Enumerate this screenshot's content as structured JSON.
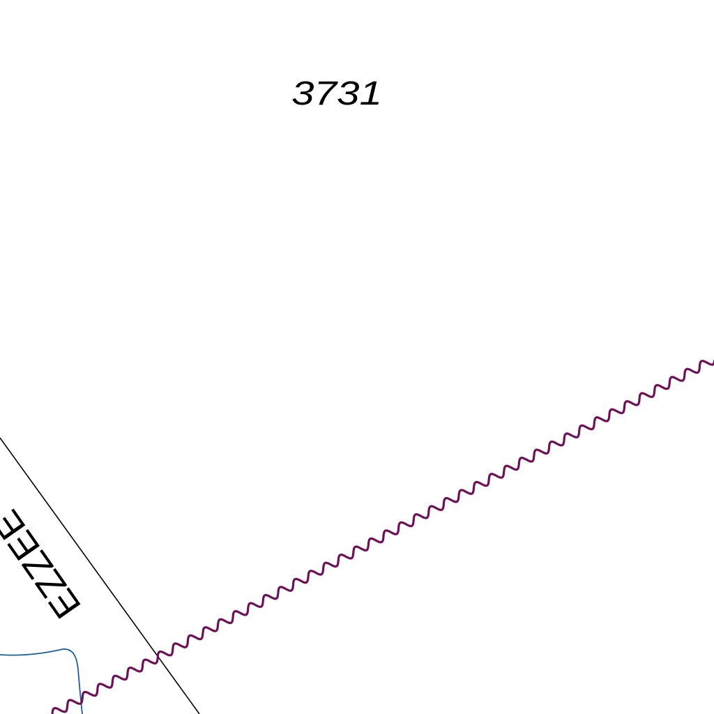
{
  "map": {
    "parcel_number": "3731",
    "street_label": "EZZEE",
    "colors": {
      "background": "#ffffff",
      "parcel_boundary": "#000000",
      "wavy_line": "#6e0f5a",
      "water_line": "#1a5fa0",
      "text": "#000000"
    }
  }
}
